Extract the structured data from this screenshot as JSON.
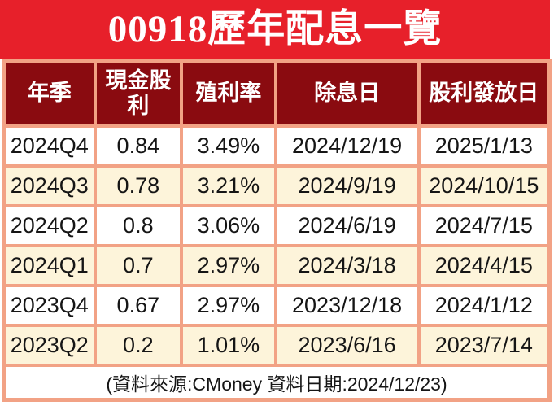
{
  "title": "00918歷年配息一覽",
  "chart_data": {
    "type": "table",
    "title": "00918歷年配息一覽",
    "columns": [
      "年季",
      "現金股利",
      "殖利率",
      "除息日",
      "股利發放日"
    ],
    "rows": [
      [
        "2024Q4",
        "0.84",
        "3.49%",
        "2024/12/19",
        "2025/1/13"
      ],
      [
        "2024Q3",
        "0.78",
        "3.21%",
        "2024/9/19",
        "2024/10/15"
      ],
      [
        "2024Q2",
        "0.8",
        "3.06%",
        "2024/6/19",
        "2024/7/15"
      ],
      [
        "2024Q1",
        "0.7",
        "2.97%",
        "2024/3/18",
        "2024/4/15"
      ],
      [
        "2023Q4",
        "0.67",
        "2.97%",
        "2023/12/18",
        "2024/1/12"
      ],
      [
        "2023Q2",
        "0.2",
        "1.01%",
        "2023/6/16",
        "2023/7/14"
      ]
    ],
    "cash_dividend_values": [
      0.84,
      0.78,
      0.8,
      0.7,
      0.67,
      0.2
    ],
    "yield_percent_values": [
      3.49,
      3.21,
      3.06,
      2.97,
      2.97,
      1.01
    ],
    "source_note": "(資料來源:CMoney 資料日期:2024/12/23)"
  },
  "footer_note": "(資料來源:CMoney 資料日期:2024/12/23)",
  "colors": {
    "banner_red": "#e7202a",
    "header_maroon": "#8a0b10",
    "grid_salmon": "#f2a285",
    "row_cream": "#fdf4da",
    "row_white": "#ffffff",
    "title_text": "#ffffff",
    "cell_text": "#151515"
  }
}
